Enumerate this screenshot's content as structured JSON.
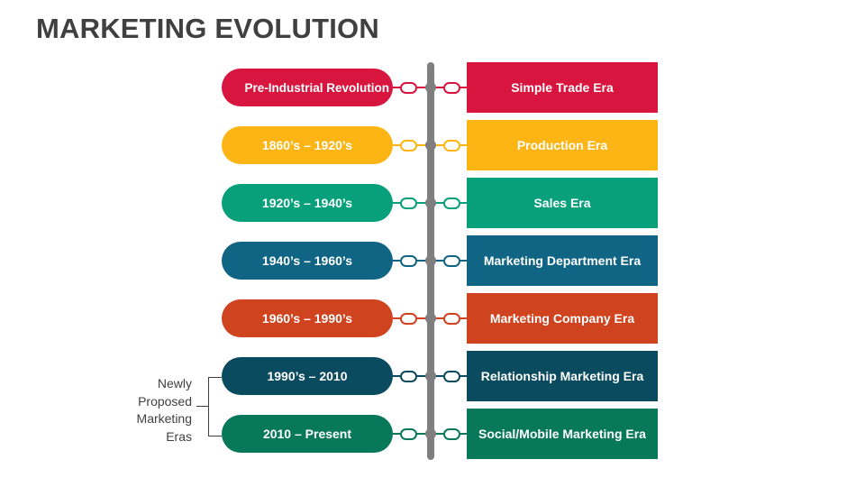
{
  "title": "MARKETING EVOLUTION",
  "side_label": "Newly Proposed Marketing Eras",
  "side_label_lines": [
    "Newly",
    "Proposed",
    "Marketing",
    "Eras"
  ],
  "rows": [
    {
      "period": "Pre-Industrial Revolution",
      "era": "Simple Trade Era",
      "color": "#D7153F"
    },
    {
      "period": "1860’s – 1920’s",
      "era": "Production Era",
      "color": "#FDB515"
    },
    {
      "period": "1920’s – 1940’s",
      "era": "Sales Era",
      "color": "#08A07A"
    },
    {
      "period": "1940’s – 1960’s",
      "era": "Marketing Department Era",
      "color": "#106584"
    },
    {
      "period": "1960’s – 1990’s",
      "era": "Marketing Company Era",
      "color": "#CF431E"
    },
    {
      "period": "1990’s – 2010",
      "era": "Relationship Marketing Era",
      "color": "#0B4B5F"
    },
    {
      "period": "2010 – Present",
      "era": "Social/Mobile Marketing Era",
      "color": "#08785A"
    }
  ],
  "colors": {
    "title": "#404040",
    "spine": "#7F7F7F",
    "background": "#FFFFFF"
  }
}
